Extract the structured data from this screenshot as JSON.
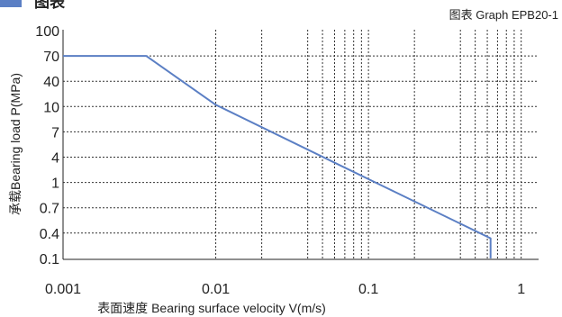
{
  "header": {
    "section_title": "图表",
    "caption": "图表 Graph EPB20-1"
  },
  "chart_data": {
    "type": "line",
    "title": "",
    "xlabel": "表面速度 Bearing surface velocity V(m/s)",
    "ylabel": "承载Bearing load P(MPa)",
    "x_scale": "log",
    "y_scale": "log",
    "xlim": [
      0.001,
      1.3
    ],
    "ylim": [
      0.1,
      100
    ],
    "x_ticks": [
      {
        "value": 0.001,
        "label": "0.001"
      },
      {
        "value": 0.01,
        "label": "0.01"
      },
      {
        "value": 0.1,
        "label": "0.1"
      },
      {
        "value": 1,
        "label": "1"
      }
    ],
    "y_ticks": [
      {
        "value": 100,
        "label": "100"
      },
      {
        "value": 70,
        "label": "70"
      },
      {
        "value": 40,
        "label": "40"
      },
      {
        "value": 10,
        "label": "10"
      },
      {
        "value": 7,
        "label": "7"
      },
      {
        "value": 4,
        "label": "4"
      },
      {
        "value": 1,
        "label": "1"
      },
      {
        "value": 0.7,
        "label": "0.7"
      },
      {
        "value": 0.4,
        "label": "0.4"
      },
      {
        "value": 0.1,
        "label": "0.1"
      }
    ],
    "x_gridlines": [
      0.01,
      0.02,
      0.04,
      0.05,
      0.06,
      0.07,
      0.08,
      0.09,
      0.1,
      0.2,
      0.4,
      0.5,
      0.6,
      0.7,
      0.8,
      0.9,
      1
    ],
    "grid": true,
    "grid_style": "dotted",
    "series": [
      {
        "color": "#5b7fc4",
        "x": [
          0.001,
          0.0035,
          0.01,
          0.1,
          0.63,
          0.63
        ],
        "y": [
          70,
          70,
          11,
          1.2,
          0.3,
          0.1
        ]
      }
    ]
  }
}
